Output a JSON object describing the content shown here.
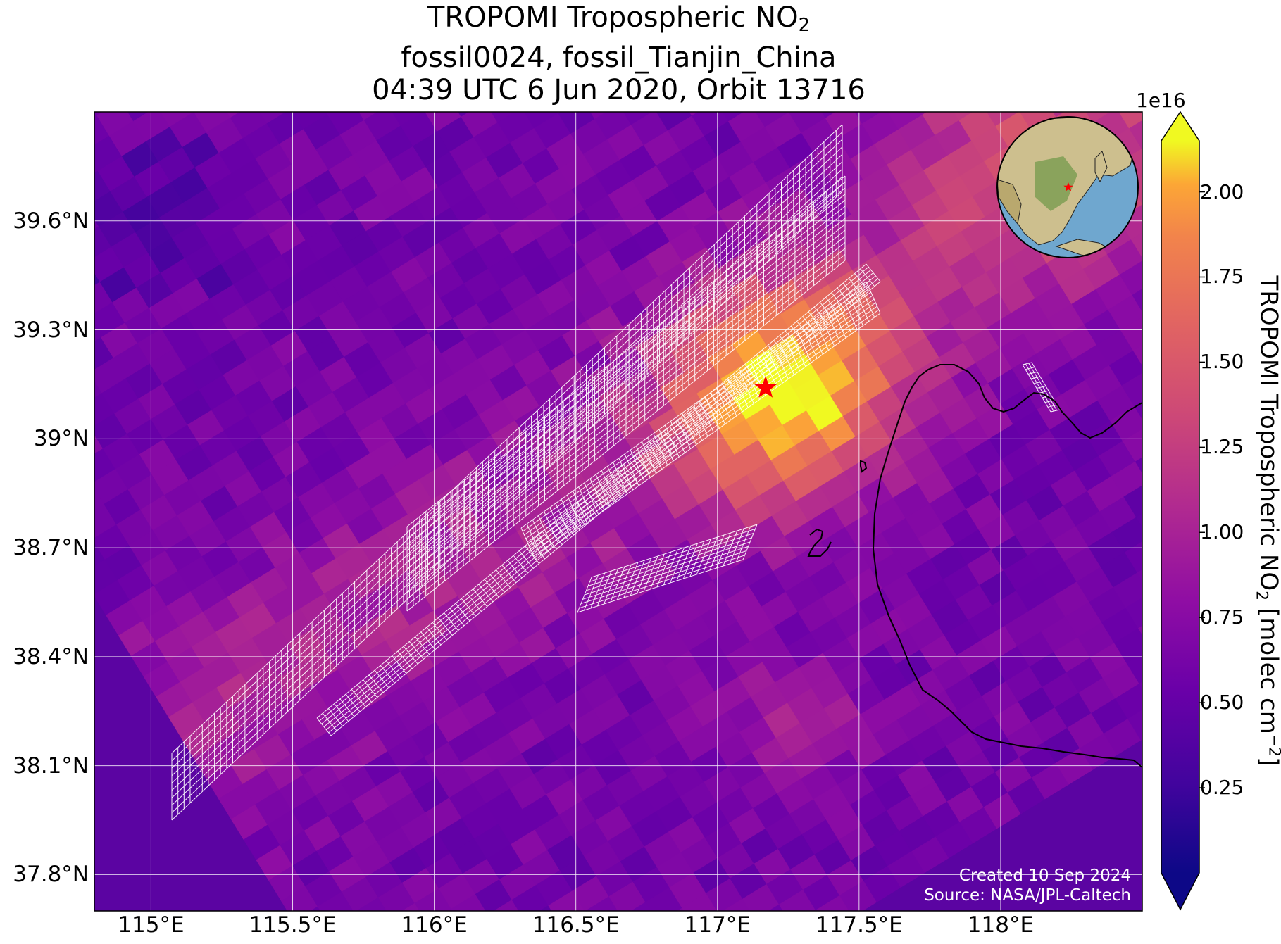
{
  "title": {
    "line1_main": "TROPOMI Tropospheric NO",
    "line1_sub": "2",
    "line2": "fossil0024, fossil_Tianjin_China",
    "line3": "04:39 UTC 6 Jun 2020, Orbit 13716"
  },
  "map": {
    "colormap": "plasma",
    "lon_range": [
      114.8,
      118.5
    ],
    "lat_range": [
      37.7,
      39.9
    ],
    "lat_ticks": [
      {
        "value": 39.6,
        "label": "39.6°N"
      },
      {
        "value": 39.3,
        "label": "39.3°N"
      },
      {
        "value": 39.0,
        "label": "39°N"
      },
      {
        "value": 38.7,
        "label": "38.7°N"
      },
      {
        "value": 38.4,
        "label": "38.4°N"
      },
      {
        "value": 38.1,
        "label": "38.1°N"
      },
      {
        "value": 37.8,
        "label": "37.8°N"
      }
    ],
    "lon_ticks": [
      {
        "value": 115.0,
        "label": "115°E"
      },
      {
        "value": 115.5,
        "label": "115.5°E"
      },
      {
        "value": 116.0,
        "label": "116°E"
      },
      {
        "value": 116.5,
        "label": "116.5°E"
      },
      {
        "value": 117.0,
        "label": "117°E"
      },
      {
        "value": 117.5,
        "label": "117.5°E"
      },
      {
        "value": 118.0,
        "label": "118°E"
      }
    ],
    "source_marker": {
      "name": "red-star",
      "lon": 117.17,
      "lat": 39.14,
      "color": "#ff0000"
    },
    "gridline_color": "#ffffff",
    "target_grid_color": "#ffffff",
    "inset_globe": {
      "center": "East Asia",
      "marker": "red-star"
    }
  },
  "colorbar": {
    "offset_label": "1e16",
    "ticks": [
      {
        "value": 0.25,
        "label": "0.25"
      },
      {
        "value": 0.5,
        "label": "0.50"
      },
      {
        "value": 0.75,
        "label": "0.75"
      },
      {
        "value": 1.0,
        "label": "1.00"
      },
      {
        "value": 1.25,
        "label": "1.25"
      },
      {
        "value": 1.5,
        "label": "1.50"
      },
      {
        "value": 1.75,
        "label": "1.75"
      },
      {
        "value": 2.0,
        "label": "2.00"
      }
    ],
    "range": [
      0.0,
      2.15
    ],
    "extend": "both",
    "label_main": "TROPOMI Tropospheric NO",
    "label_sub": "2",
    "label_units": " [molec cm",
    "label_sup": "−2",
    "label_end": "]"
  },
  "credits": {
    "created": "Created 10 Sep 2024",
    "source": "Source: NASA/JPL-Caltech"
  }
}
